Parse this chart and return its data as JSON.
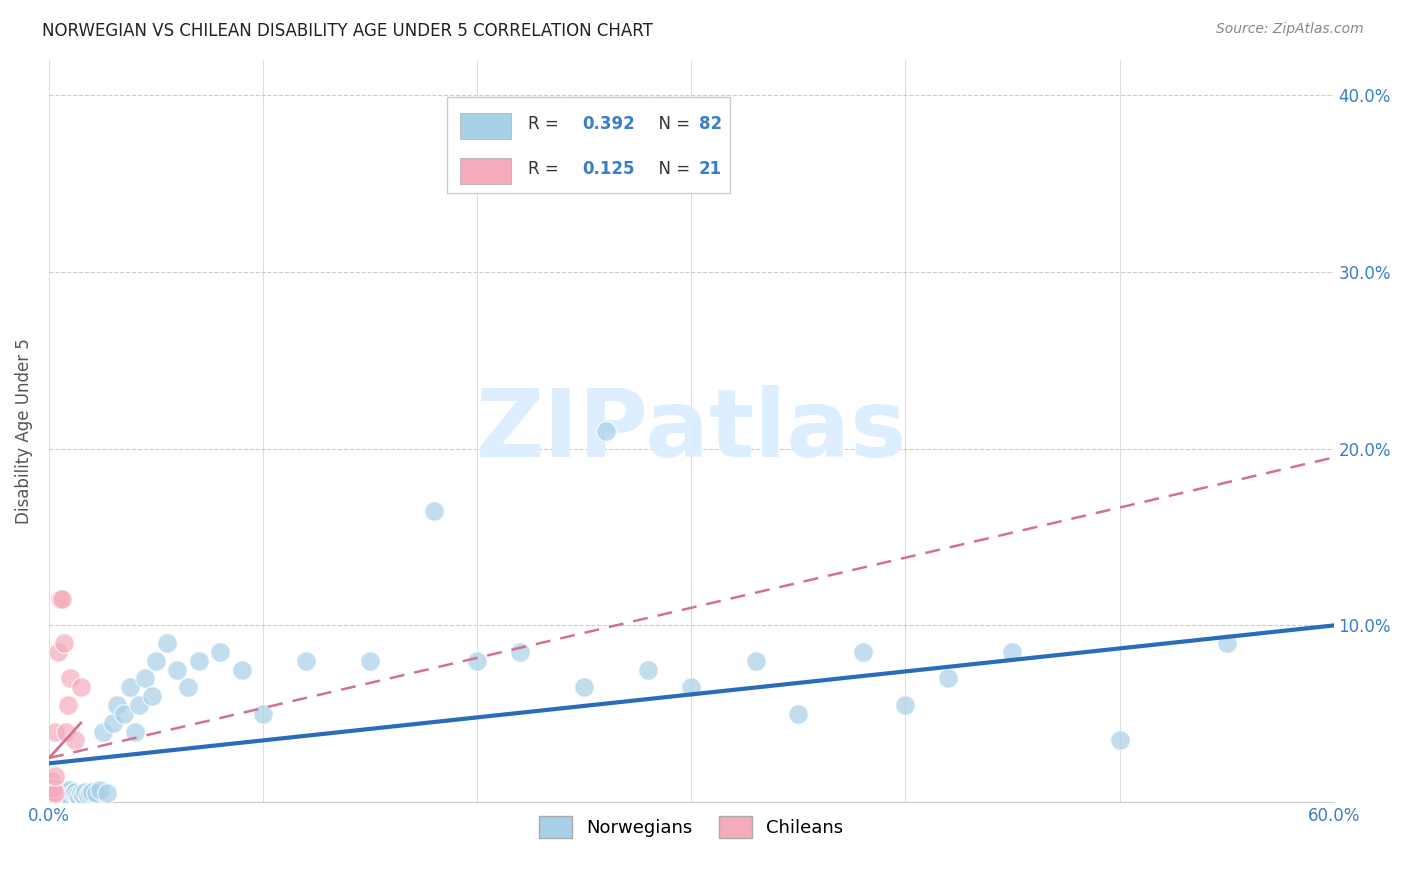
{
  "title": "NORWEGIAN VS CHILEAN DISABILITY AGE UNDER 5 CORRELATION CHART",
  "source": "Source: ZipAtlas.com",
  "ylabel": "Disability Age Under 5",
  "xlim": [
    0.0,
    0.6
  ],
  "ylim": [
    0.0,
    0.42
  ],
  "xticks": [
    0.0,
    0.1,
    0.2,
    0.3,
    0.4,
    0.5,
    0.6
  ],
  "yticks": [
    0.0,
    0.1,
    0.2,
    0.3,
    0.4
  ],
  "xticklabels": [
    "0.0%",
    "",
    "",
    "",
    "",
    "",
    "60.0%"
  ],
  "yticklabels_right": [
    "",
    "10.0%",
    "20.0%",
    "30.0%",
    "40.0%"
  ],
  "norwegian_R": 0.392,
  "norwegian_N": 82,
  "chilean_R": 0.125,
  "chilean_N": 21,
  "norwegian_color": "#A8D0E8",
  "chilean_color": "#F4ABBB",
  "norwegian_line_color": "#2B6CB8",
  "chilean_line_color": "#D47090",
  "chilean_line_dash": [
    6,
    4
  ],
  "legend_label_norwegian": "Norwegians",
  "legend_label_chilean": "Chileans",
  "watermark": "ZIPatlas",
  "nor_line_x0": 0.0,
  "nor_line_y0": 0.022,
  "nor_line_x1": 0.6,
  "nor_line_y1": 0.1,
  "chi_line_x0": 0.0,
  "chi_line_y0": 0.025,
  "chi_line_x1": 0.6,
  "chi_line_y1": 0.195,
  "norwegian_x": [
    0.001,
    0.001,
    0.001,
    0.002,
    0.002,
    0.002,
    0.002,
    0.003,
    0.003,
    0.003,
    0.003,
    0.004,
    0.004,
    0.004,
    0.004,
    0.004,
    0.005,
    0.005,
    0.005,
    0.005,
    0.005,
    0.006,
    0.006,
    0.006,
    0.007,
    0.007,
    0.007,
    0.008,
    0.008,
    0.008,
    0.009,
    0.009,
    0.01,
    0.01,
    0.01,
    0.011,
    0.012,
    0.013,
    0.014,
    0.015,
    0.016,
    0.017,
    0.018,
    0.019,
    0.02,
    0.022,
    0.024,
    0.025,
    0.027,
    0.03,
    0.032,
    0.035,
    0.038,
    0.04,
    0.042,
    0.045,
    0.048,
    0.05,
    0.055,
    0.06,
    0.065,
    0.07,
    0.08,
    0.09,
    0.1,
    0.12,
    0.15,
    0.18,
    0.2,
    0.22,
    0.25,
    0.28,
    0.3,
    0.33,
    0.35,
    0.38,
    0.4,
    0.45,
    0.5,
    0.55,
    0.26,
    0.42
  ],
  "norwegian_y": [
    0.005,
    0.003,
    0.007,
    0.004,
    0.006,
    0.002,
    0.008,
    0.003,
    0.005,
    0.007,
    0.002,
    0.004,
    0.006,
    0.003,
    0.007,
    0.005,
    0.003,
    0.006,
    0.004,
    0.008,
    0.002,
    0.005,
    0.003,
    0.007,
    0.004,
    0.006,
    0.003,
    0.005,
    0.007,
    0.004,
    0.003,
    0.006,
    0.004,
    0.007,
    0.003,
    0.005,
    0.006,
    0.004,
    0.003,
    0.005,
    0.004,
    0.006,
    0.004,
    0.005,
    0.006,
    0.005,
    0.007,
    0.04,
    0.005,
    0.045,
    0.055,
    0.05,
    0.065,
    0.04,
    0.055,
    0.07,
    0.06,
    0.08,
    0.09,
    0.075,
    0.065,
    0.08,
    0.085,
    0.075,
    0.05,
    0.08,
    0.08,
    0.165,
    0.08,
    0.085,
    0.065,
    0.075,
    0.065,
    0.08,
    0.05,
    0.085,
    0.055,
    0.085,
    0.035,
    0.09,
    0.21,
    0.07
  ],
  "chilean_x": [
    0.001,
    0.001,
    0.001,
    0.001,
    0.001,
    0.001,
    0.002,
    0.002,
    0.002,
    0.003,
    0.003,
    0.003,
    0.004,
    0.005,
    0.006,
    0.007,
    0.008,
    0.009,
    0.01,
    0.012,
    0.015
  ],
  "chilean_y": [
    0.005,
    0.007,
    0.003,
    0.008,
    0.01,
    0.012,
    0.004,
    0.006,
    0.008,
    0.005,
    0.015,
    0.04,
    0.085,
    0.115,
    0.115,
    0.09,
    0.04,
    0.055,
    0.07,
    0.035,
    0.065
  ]
}
